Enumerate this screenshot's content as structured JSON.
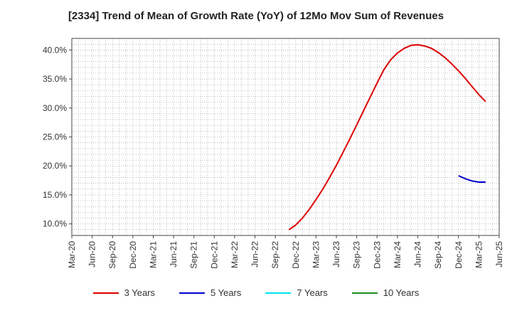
{
  "chart_data": {
    "type": "line",
    "title": "[2334]  Trend of Mean of Growth Rate (YoY) of 12Mo Mov Sum of Revenues",
    "xlabel": "",
    "ylabel": "",
    "x_ticks": [
      "Mar-20",
      "Jun-20",
      "Sep-20",
      "Dec-20",
      "Mar-21",
      "Jun-21",
      "Sep-21",
      "Dec-21",
      "Mar-22",
      "Jun-22",
      "Sep-22",
      "Dec-22",
      "Mar-23",
      "Jun-23",
      "Sep-23",
      "Dec-23",
      "Mar-24",
      "Jun-24",
      "Sep-24",
      "Dec-24",
      "Mar-25",
      "Jun-25"
    ],
    "y_ticks": [
      "10.0%",
      "15.0%",
      "20.0%",
      "25.0%",
      "30.0%",
      "35.0%",
      "40.0%"
    ],
    "ylim": [
      8.0,
      42.0
    ],
    "grid": true,
    "legend_position": "bottom",
    "series": [
      {
        "name": "3 Years",
        "color": "#dd0000",
        "points": [
          [
            "Nov-22",
            9.0
          ],
          [
            "Dec-22",
            9.8
          ],
          [
            "Jan-23",
            11.0
          ],
          [
            "Feb-23",
            12.5
          ],
          [
            "Mar-23",
            14.2
          ],
          [
            "Apr-23",
            16.0
          ],
          [
            "May-23",
            18.0
          ],
          [
            "Jun-23",
            20.1
          ],
          [
            "Jul-23",
            22.4
          ],
          [
            "Aug-23",
            24.7
          ],
          [
            "Sep-23",
            27.1
          ],
          [
            "Oct-23",
            29.5
          ],
          [
            "Nov-23",
            31.9
          ],
          [
            "Dec-23",
            34.3
          ],
          [
            "Jan-24",
            36.6
          ],
          [
            "Feb-24",
            38.3
          ],
          [
            "Mar-24",
            39.5
          ],
          [
            "Apr-24",
            40.3
          ],
          [
            "May-24",
            40.8
          ],
          [
            "Jun-24",
            40.9
          ],
          [
            "Jul-24",
            40.7
          ],
          [
            "Aug-24",
            40.3
          ],
          [
            "Sep-24",
            39.6
          ],
          [
            "Oct-24",
            38.7
          ],
          [
            "Nov-24",
            37.6
          ],
          [
            "Dec-24",
            36.4
          ],
          [
            "Jan-25",
            35.1
          ],
          [
            "Feb-25",
            33.7
          ],
          [
            "Mar-25",
            32.3
          ],
          [
            "Apr-25",
            31.1
          ]
        ]
      },
      {
        "name": "5 Years",
        "color": "#0000cc",
        "points": [
          [
            "Dec-24",
            18.3
          ],
          [
            "Jan-25",
            17.8
          ],
          [
            "Feb-25",
            17.4
          ],
          [
            "Mar-25",
            17.2
          ],
          [
            "Apr-25",
            17.2
          ]
        ]
      },
      {
        "name": "7 Years",
        "color": "#00e5ee",
        "points": []
      },
      {
        "name": "10 Years",
        "color": "#228b22",
        "points": []
      }
    ]
  }
}
